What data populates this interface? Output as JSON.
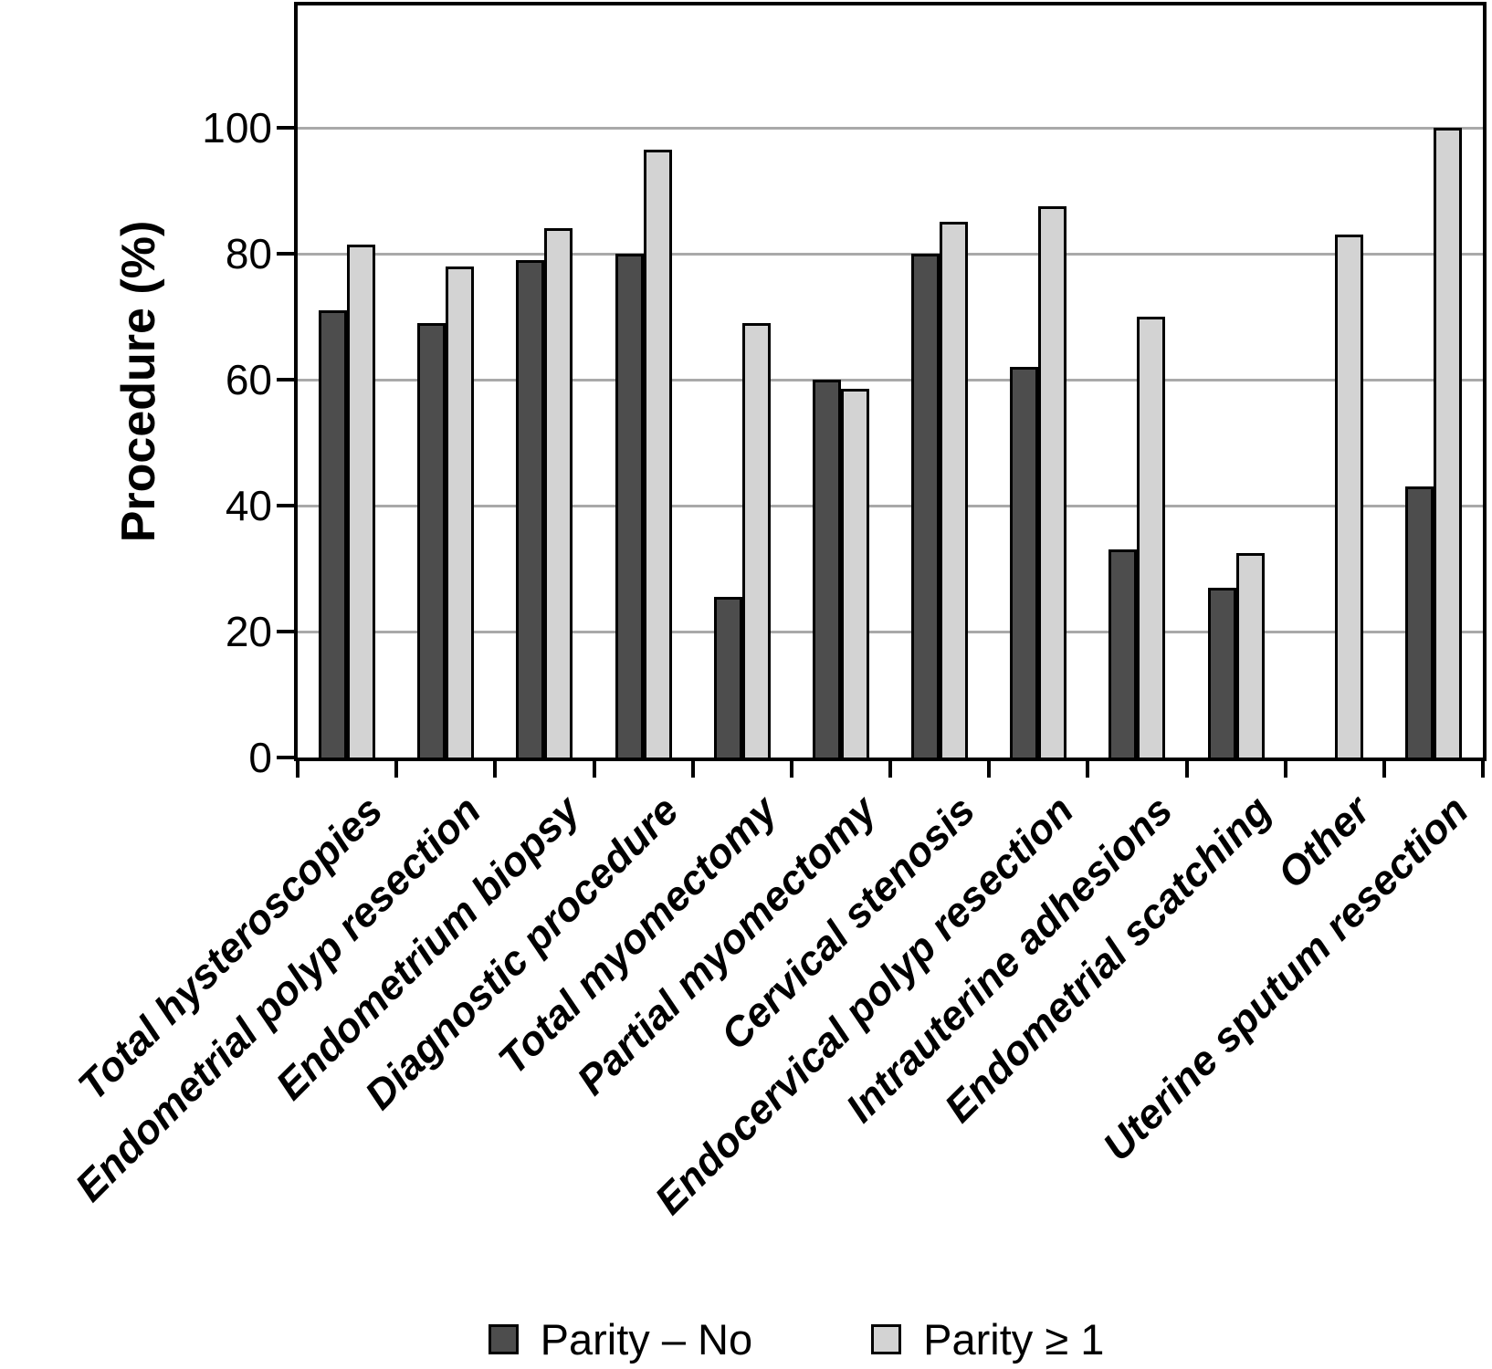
{
  "chart_data": {
    "type": "bar",
    "title": "",
    "xlabel": "",
    "ylabel": "Procedure (%)",
    "ylim": [
      0,
      119
    ],
    "yticks": [
      0,
      20,
      40,
      60,
      80,
      100
    ],
    "grid": true,
    "gridline_color": "#a9a9a9",
    "bar_border_color": "#000000",
    "background_color": "#ffffff",
    "legend_position": "bottom",
    "categories": [
      "Total hysteroscopies",
      "Endometrial polyp resection",
      "Endometrium biopsy",
      "Diagnostic procedure",
      "Total myomectomy",
      "Partial myomectomy",
      "Cervical stenosis",
      "Endocervical polyp resection",
      "Intrauterine adhesions",
      "Endometrial scatching",
      "Other",
      "Uterine sputum resection"
    ],
    "series": [
      {
        "name": "Parity – No",
        "color": "#4d4d4d",
        "values": [
          71,
          69,
          79,
          80,
          25.5,
          60,
          80,
          62,
          33,
          27,
          0,
          43
        ]
      },
      {
        "name": "Parity ≥ 1",
        "color": "#d3d3d3",
        "values": [
          81.5,
          78,
          84,
          96.5,
          69,
          58.5,
          85,
          87.5,
          70,
          32.5,
          83,
          100
        ]
      }
    ]
  }
}
